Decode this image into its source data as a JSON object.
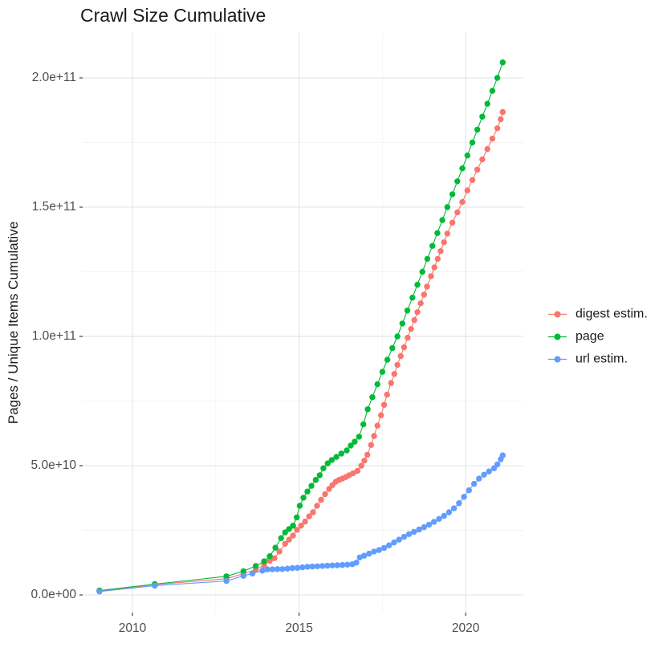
{
  "chart_data": {
    "type": "line",
    "title": "Crawl Size Cumulative",
    "xlabel": "",
    "ylabel": "Pages / Unique Items Cumulative",
    "x_ticks": [
      2010,
      2015,
      2020
    ],
    "x_tick_labels": [
      "2010",
      "2015",
      "2020"
    ],
    "x_minor_ticks": [
      2012.5,
      2017.5
    ],
    "y_ticks": [
      0,
      50000000000.0,
      100000000000.0,
      150000000000.0,
      200000000000.0
    ],
    "y_tick_labels": [
      "0.0e+00",
      "5.0e+10",
      "1.0e+11",
      "1.5e+11",
      "2.0e+11"
    ],
    "y_minor_ticks": [
      25000000000.0,
      75000000000.0,
      125000000000.0,
      175000000000.0
    ],
    "xlim": [
      2008.506,
      2021.73
    ],
    "ylim": [
      -6830000000.0,
      217400000000.0
    ],
    "grid": "major+minor",
    "legend_position": "right",
    "marker_radius": 3.7,
    "colors": {
      "digest": "#F8766D",
      "page": "#00BA38",
      "url": "#619CFF",
      "grid_major": "#e7e7e7",
      "grid_minor": "#f3f3f3",
      "tick": "#333333"
    },
    "series": [
      {
        "name": "digest estim.",
        "color": "#F8766D",
        "points": [
          [
            2009.01,
            1500000000.0
          ],
          [
            2010.67,
            4000000000.0
          ],
          [
            2012.82,
            6300000000.0
          ],
          [
            2013.33,
            8200000000.0
          ],
          [
            2013.7,
            9800000000.0
          ],
          [
            2013.95,
            11500000000.0
          ],
          [
            2014.12,
            13200000000.0
          ],
          [
            2014.26,
            14200000000.0
          ],
          [
            2014.41,
            16800000000.0
          ],
          [
            2014.58,
            19800000000.0
          ],
          [
            2014.7,
            21400000000.0
          ],
          [
            2014.82,
            23000000000.0
          ],
          [
            2014.94,
            25200000000.0
          ],
          [
            2015.06,
            26800000000.0
          ],
          [
            2015.18,
            28400000000.0
          ],
          [
            2015.3,
            30400000000.0
          ],
          [
            2015.42,
            32000000000.0
          ],
          [
            2015.54,
            34500000000.0
          ],
          [
            2015.66,
            36800000000.0
          ],
          [
            2015.78,
            39000000000.0
          ],
          [
            2015.9,
            41000000000.0
          ],
          [
            2016.0,
            42500000000.0
          ],
          [
            2016.1,
            43800000000.0
          ],
          [
            2016.2,
            44500000000.0
          ],
          [
            2016.3,
            45000000000.0
          ],
          [
            2016.4,
            45600000000.0
          ],
          [
            2016.5,
            46300000000.0
          ],
          [
            2016.62,
            47100000000.0
          ],
          [
            2016.75,
            48000000000.0
          ],
          [
            2016.87,
            50000000000.0
          ],
          [
            2016.96,
            52000000000.0
          ],
          [
            2017.05,
            54200000000.0
          ],
          [
            2017.16,
            58000000000.0
          ],
          [
            2017.25,
            61500000000.0
          ],
          [
            2017.35,
            65500000000.0
          ],
          [
            2017.46,
            69500000000.0
          ],
          [
            2017.55,
            73500000000.0
          ],
          [
            2017.64,
            77500000000.0
          ],
          [
            2017.76,
            82000000000.0
          ],
          [
            2017.86,
            85500000000.0
          ],
          [
            2017.95,
            89000000000.0
          ],
          [
            2018.05,
            92400000000.0
          ],
          [
            2018.15,
            95800000000.0
          ],
          [
            2018.26,
            99500000000.0
          ],
          [
            2018.36,
            102900000000.0
          ],
          [
            2018.46,
            106300000000.0
          ],
          [
            2018.55,
            109400000000.0
          ],
          [
            2018.65,
            112800000000.0
          ],
          [
            2018.75,
            116200000000.0
          ],
          [
            2018.84,
            119300000000.0
          ],
          [
            2018.96,
            123300000000.0
          ],
          [
            2019.06,
            126700000000.0
          ],
          [
            2019.16,
            130000000000.0
          ],
          [
            2019.25,
            133000000000.0
          ],
          [
            2019.35,
            136400000000.0
          ],
          [
            2019.45,
            139800000000.0
          ],
          [
            2019.6,
            144000000000.0
          ],
          [
            2019.75,
            148000000000.0
          ],
          [
            2019.9,
            152000000000.0
          ],
          [
            2020.05,
            156500000000.0
          ],
          [
            2020.2,
            160500000000.0
          ],
          [
            2020.35,
            164500000000.0
          ],
          [
            2020.5,
            168500000000.0
          ],
          [
            2020.65,
            172500000000.0
          ],
          [
            2020.8,
            176500000000.0
          ],
          [
            2020.95,
            180500000000.0
          ],
          [
            2021.05,
            184000000000.0
          ],
          [
            2021.11,
            186800000000.0
          ]
        ]
      },
      {
        "name": "page",
        "color": "#00BA38",
        "points": [
          [
            2009.01,
            1700000000.0
          ],
          [
            2010.67,
            4200000000.0
          ],
          [
            2012.82,
            7200000000.0
          ],
          [
            2013.33,
            9200000000.0
          ],
          [
            2013.7,
            11200000000.0
          ],
          [
            2013.95,
            13000000000.0
          ],
          [
            2014.12,
            15000000000.0
          ],
          [
            2014.29,
            18300000000.0
          ],
          [
            2014.46,
            22000000000.0
          ],
          [
            2014.58,
            24200000000.0
          ],
          [
            2014.7,
            25500000000.0
          ],
          [
            2014.82,
            26800000000.0
          ],
          [
            2014.93,
            30000000000.0
          ],
          [
            2015.02,
            34500000000.0
          ],
          [
            2015.13,
            37600000000.0
          ],
          [
            2015.25,
            40000000000.0
          ],
          [
            2015.37,
            42200000000.0
          ],
          [
            2015.5,
            44500000000.0
          ],
          [
            2015.62,
            46300000000.0
          ],
          [
            2015.73,
            49000000000.0
          ],
          [
            2015.86,
            50900000000.0
          ],
          [
            2015.98,
            52200000000.0
          ],
          [
            2016.12,
            53400000000.0
          ],
          [
            2016.27,
            54700000000.0
          ],
          [
            2016.43,
            55900000000.0
          ],
          [
            2016.55,
            57800000000.0
          ],
          [
            2016.67,
            59300000000.0
          ],
          [
            2016.8,
            61200000000.0
          ],
          [
            2016.93,
            66000000000.0
          ],
          [
            2017.06,
            71800000000.0
          ],
          [
            2017.2,
            76500000000.0
          ],
          [
            2017.35,
            81500000000.0
          ],
          [
            2017.5,
            86300000000.0
          ],
          [
            2017.65,
            91000000000.0
          ],
          [
            2017.8,
            95500000000.0
          ],
          [
            2017.95,
            100000000000.0
          ],
          [
            2018.1,
            105000000000.0
          ],
          [
            2018.25,
            110000000000.0
          ],
          [
            2018.4,
            115000000000.0
          ],
          [
            2018.55,
            120000000000.0
          ],
          [
            2018.7,
            125000000000.0
          ],
          [
            2018.85,
            130000000000.0
          ],
          [
            2019.0,
            135000000000.0
          ],
          [
            2019.15,
            140000000000.0
          ],
          [
            2019.3,
            145000000000.0
          ],
          [
            2019.45,
            150000000000.0
          ],
          [
            2019.6,
            155000000000.0
          ],
          [
            2019.75,
            160000000000.0
          ],
          [
            2019.9,
            165000000000.0
          ],
          [
            2020.05,
            170000000000.0
          ],
          [
            2020.2,
            175000000000.0
          ],
          [
            2020.35,
            180000000000.0
          ],
          [
            2020.5,
            185000000000.0
          ],
          [
            2020.65,
            190000000000.0
          ],
          [
            2020.8,
            195000000000.0
          ],
          [
            2020.95,
            200000000000.0
          ],
          [
            2021.11,
            206000000000.0
          ]
        ]
      },
      {
        "name": "url estim.",
        "color": "#619CFF",
        "points": [
          [
            2009.01,
            1300000000.0
          ],
          [
            2010.67,
            3600000000.0
          ],
          [
            2012.82,
            5400000000.0
          ],
          [
            2013.33,
            7400000000.0
          ],
          [
            2013.6,
            8300000000.0
          ],
          [
            2013.9,
            9400000000.0
          ],
          [
            2014.05,
            9900000000.0
          ],
          [
            2014.2,
            9900000000.0
          ],
          [
            2014.35,
            10000000000.0
          ],
          [
            2014.5,
            10000000000.0
          ],
          [
            2014.65,
            10200000000.0
          ],
          [
            2014.8,
            10400000000.0
          ],
          [
            2014.95,
            10500000000.0
          ],
          [
            2015.1,
            10700000000.0
          ],
          [
            2015.25,
            10900000000.0
          ],
          [
            2015.4,
            11000000000.0
          ],
          [
            2015.55,
            11100000000.0
          ],
          [
            2015.7,
            11200000000.0
          ],
          [
            2015.85,
            11300000000.0
          ],
          [
            2016.0,
            11400000000.0
          ],
          [
            2016.15,
            11500000000.0
          ],
          [
            2016.3,
            11600000000.0
          ],
          [
            2016.45,
            11700000000.0
          ],
          [
            2016.6,
            11900000000.0
          ],
          [
            2016.72,
            12500000000.0
          ],
          [
            2016.82,
            14500000000.0
          ],
          [
            2016.95,
            15200000000.0
          ],
          [
            2017.1,
            16000000000.0
          ],
          [
            2017.25,
            16800000000.0
          ],
          [
            2017.4,
            17400000000.0
          ],
          [
            2017.55,
            18200000000.0
          ],
          [
            2017.7,
            19200000000.0
          ],
          [
            2017.85,
            20300000000.0
          ],
          [
            2018.0,
            21400000000.0
          ],
          [
            2018.15,
            22500000000.0
          ],
          [
            2018.3,
            23500000000.0
          ],
          [
            2018.45,
            24400000000.0
          ],
          [
            2018.6,
            25300000000.0
          ],
          [
            2018.75,
            26200000000.0
          ],
          [
            2018.9,
            27200000000.0
          ],
          [
            2019.05,
            28300000000.0
          ],
          [
            2019.2,
            29400000000.0
          ],
          [
            2019.35,
            30600000000.0
          ],
          [
            2019.5,
            32000000000.0
          ],
          [
            2019.65,
            33500000000.0
          ],
          [
            2019.8,
            35500000000.0
          ],
          [
            2019.95,
            38000000000.0
          ],
          [
            2020.1,
            40500000000.0
          ],
          [
            2020.25,
            43000000000.0
          ],
          [
            2020.4,
            45000000000.0
          ],
          [
            2020.55,
            46500000000.0
          ],
          [
            2020.7,
            47800000000.0
          ],
          [
            2020.85,
            49000000000.0
          ],
          [
            2020.95,
            50500000000.0
          ],
          [
            2021.05,
            52500000000.0
          ],
          [
            2021.11,
            54000000000.0
          ]
        ]
      }
    ],
    "legend": {
      "items": [
        {
          "label": "digest estim.",
          "color": "#F8766D"
        },
        {
          "label": "page",
          "color": "#00BA38"
        },
        {
          "label": "url estim.",
          "color": "#619CFF"
        }
      ]
    }
  }
}
